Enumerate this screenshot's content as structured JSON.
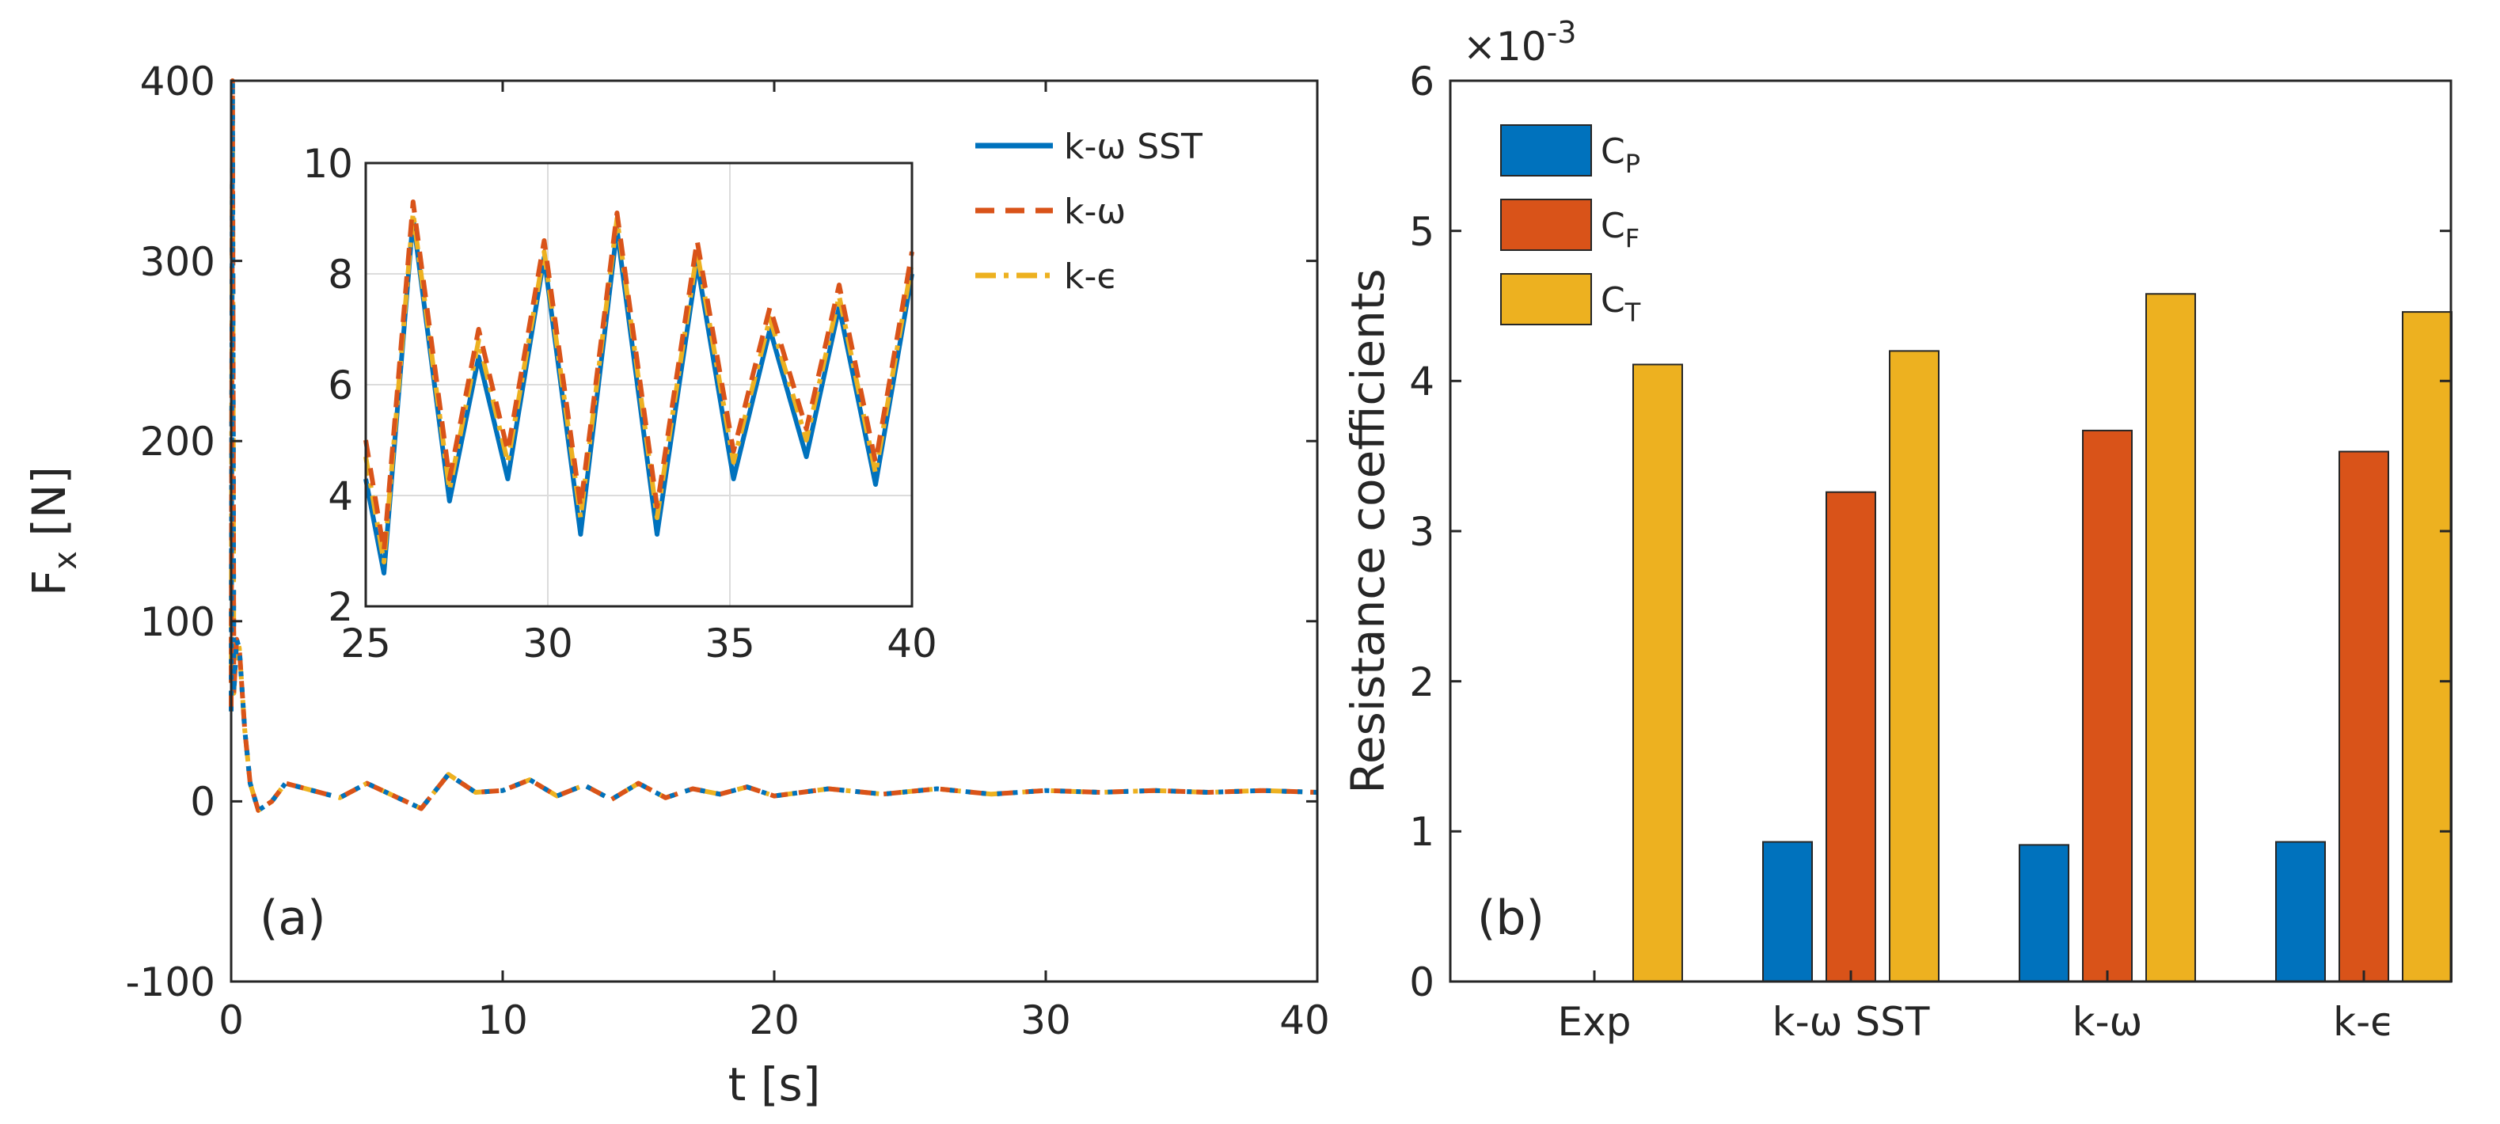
{
  "chart_data": [
    {
      "id": "a",
      "type": "line",
      "panel_label": "(a)",
      "xlabel": "t [s]",
      "ylabel_main": "F",
      "ylabel_sub": "x",
      "ylabel_unit": " [N]",
      "xlim": [
        0,
        40
      ],
      "ylim": [
        -100,
        400
      ],
      "xticks": [
        "0",
        "10",
        "20",
        "30",
        "40"
      ],
      "yticks": [
        "-100",
        "0",
        "100",
        "200",
        "300",
        "400"
      ],
      "legend": [
        "k-ω SST",
        "k-ω",
        "k-ϵ"
      ],
      "legend_position": "top-right",
      "colors": [
        "#0072BD",
        "#D95319",
        "#EDB120"
      ],
      "series": [
        {
          "name": "k-ω SST",
          "x": [
            0,
            0.05,
            0.1,
            0.2,
            0.3,
            0.5,
            0.7,
            1.0,
            1.5,
            2,
            3,
            4,
            5,
            6,
            7,
            8,
            9,
            10,
            11,
            12,
            13,
            14,
            15,
            16,
            17,
            18,
            19,
            20,
            22,
            24,
            26,
            28,
            30,
            32,
            34,
            36,
            38,
            40
          ],
          "y": [
            50,
            400,
            60,
            90,
            85,
            40,
            10,
            -5,
            0,
            10,
            6,
            2,
            10,
            3,
            -4,
            15,
            5,
            6,
            12,
            3,
            9,
            1,
            10,
            2,
            7,
            4,
            8,
            3,
            7,
            4,
            7,
            4,
            6,
            5,
            6,
            5,
            6,
            5
          ]
        }
      ]
    },
    {
      "id": "a-inset",
      "type": "line",
      "xlim": [
        25,
        40
      ],
      "ylim": [
        2,
        10
      ],
      "xticks": [
        "25",
        "30",
        "35",
        "40"
      ],
      "yticks": [
        "2",
        "4",
        "6",
        "8",
        "10"
      ],
      "grid": true,
      "series": [
        {
          "name": "k-ω SST",
          "x": [
            25,
            25.5,
            26.3,
            27.3,
            28.1,
            28.9,
            29.9,
            30.9,
            31.9,
            33.0,
            34.1,
            35.1,
            36.1,
            37.1,
            38.0,
            39.0,
            40
          ],
          "y": [
            4.3,
            2.6,
            9.0,
            3.9,
            6.5,
            4.3,
            8.3,
            3.3,
            8.8,
            3.3,
            8.2,
            4.3,
            7.0,
            4.7,
            7.4,
            4.2,
            8.0
          ]
        },
        {
          "name": "k-ω",
          "x": [
            25,
            25.5,
            26.3,
            27.3,
            28.1,
            28.9,
            29.9,
            30.9,
            31.9,
            33.0,
            34.1,
            35.1,
            36.1,
            37.1,
            38.0,
            39.0,
            40
          ],
          "y": [
            5.0,
            3.0,
            9.3,
            4.3,
            7.0,
            4.8,
            8.6,
            3.8,
            9.1,
            3.8,
            8.6,
            4.8,
            7.4,
            5.2,
            7.8,
            4.6,
            8.4
          ]
        },
        {
          "name": "k-ϵ",
          "x": [
            25,
            25.5,
            26.3,
            27.3,
            28.1,
            28.9,
            29.9,
            30.9,
            31.9,
            33.0,
            34.1,
            35.1,
            36.1,
            37.1,
            38.0,
            39.0,
            40
          ],
          "y": [
            4.7,
            2.8,
            9.1,
            4.1,
            6.8,
            4.6,
            8.4,
            3.6,
            9.0,
            3.6,
            8.4,
            4.6,
            7.2,
            5.0,
            7.6,
            4.4,
            8.2
          ]
        }
      ]
    },
    {
      "id": "b",
      "type": "bar",
      "panel_label": "(b)",
      "ylabel": "Resistance coefficients",
      "exponent_prefix": "×10",
      "exponent": "-3",
      "ylim": [
        0,
        6
      ],
      "yticks": [
        "0",
        "1",
        "2",
        "3",
        "4",
        "5",
        "6"
      ],
      "categories": [
        "Exp",
        "k-ω SST",
        "k-ω",
        "k-ϵ"
      ],
      "legend_position": "top-left",
      "colors": [
        "#0072BD",
        "#D95319",
        "#EDB120"
      ],
      "series": [
        {
          "name": "C",
          "sub": "P",
          "values": [
            null,
            0.93,
            0.91,
            0.93
          ]
        },
        {
          "name": "C",
          "sub": "F",
          "values": [
            null,
            3.26,
            3.67,
            3.53
          ]
        },
        {
          "name": "C",
          "sub": "T",
          "values": [
            4.11,
            4.2,
            4.58,
            4.46
          ]
        }
      ]
    }
  ]
}
